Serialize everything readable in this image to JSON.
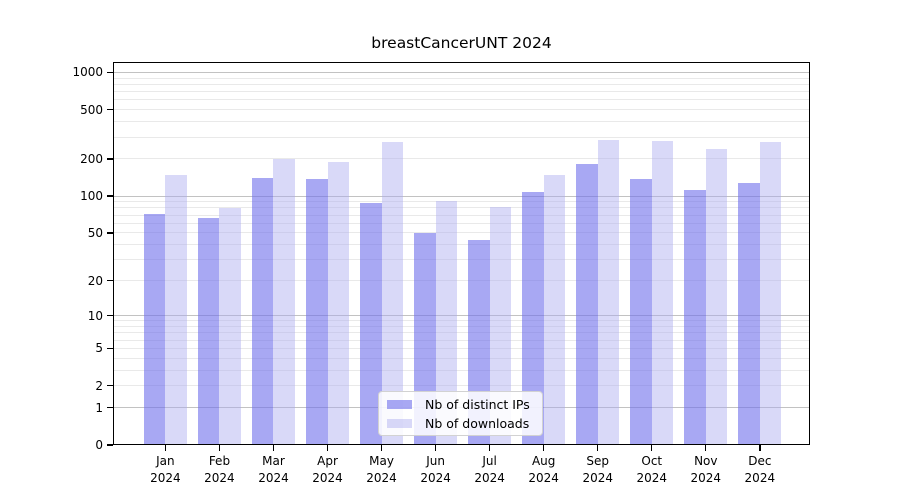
{
  "title": "breastCancerUNT 2024",
  "chart_data": {
    "type": "bar",
    "title": "breastCancerUNT 2024",
    "categories": [
      "Jan",
      "Feb",
      "Mar",
      "Apr",
      "May",
      "Jun",
      "Jul",
      "Aug",
      "Sep",
      "Oct",
      "Nov",
      "Dec"
    ],
    "year_label": "2024",
    "series": [
      {
        "name": "Nb of distinct IPs",
        "color": "rgba(110,110,235,0.6)",
        "values": [
          71,
          66,
          140,
          138,
          88,
          50,
          44,
          107,
          181,
          137,
          112,
          127
        ]
      },
      {
        "name": "Nb of downloads",
        "color": "rgba(170,170,240,0.45)",
        "values": [
          148,
          80,
          198,
          188,
          272,
          91,
          82,
          149,
          285,
          279,
          243,
          272
        ]
      }
    ],
    "xlabel": "",
    "ylabel": "",
    "yscale": "log10(1+x)",
    "ylim": [
      0,
      1200
    ],
    "y_ticks": [
      0,
      1,
      2,
      5,
      10,
      20,
      50,
      100,
      200,
      500,
      1000
    ],
    "grid": "horizontal major+minor",
    "legend_position": "inside lower-center"
  },
  "colors": {
    "major_grid": "#c2c2c2",
    "minor_grid": "#e9e9e9",
    "frame": "#000000",
    "background": "#ffffff"
  }
}
